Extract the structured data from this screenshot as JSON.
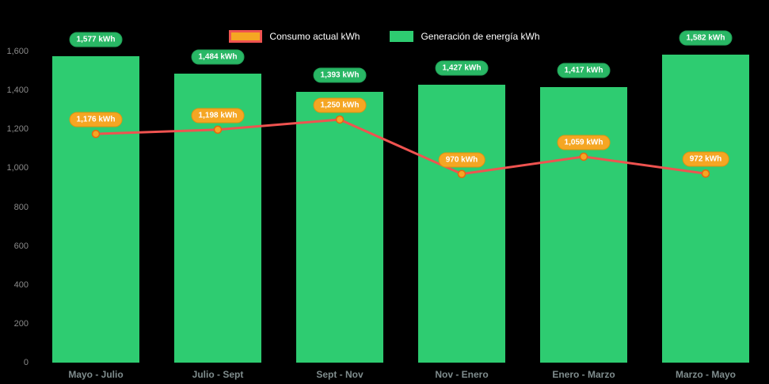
{
  "chart_data": {
    "type": "bar",
    "title": "",
    "categories": [
      "Mayo - Julio",
      "Julio - Sept",
      "Sept - Nov",
      "Nov - Enero",
      "Enero - Marzo",
      "Marzo - Mayo"
    ],
    "series": [
      {
        "name": "Consumo actual kWh",
        "type": "line",
        "values": [
          1176,
          1198,
          1250,
          970,
          1059,
          972
        ],
        "labels": [
          "1,176 kWh",
          "1,198 kWh",
          "1,250 kWh",
          "970 kWh",
          "1,059 kWh",
          "972 kWh"
        ],
        "line_color": "#ef5350",
        "marker_color": "#f5a623",
        "badge_color": "#f5a623"
      },
      {
        "name": "Generación de energía kWh",
        "type": "bar",
        "values": [
          1577,
          1484,
          1393,
          1427,
          1417,
          1582
        ],
        "labels": [
          "1,577 kWh",
          "1,484 kWh",
          "1,393 kWh",
          "1,427 kWh",
          "1,417 kWh",
          "1,582 kWh"
        ],
        "bar_color": "#2ecc71",
        "badge_color": "#29b765"
      }
    ],
    "xlabel": "",
    "ylabel": "",
    "ylim": [
      0,
      1600
    ],
    "yticks": [
      0,
      200,
      400,
      600,
      800,
      1000,
      1200,
      1400,
      1600
    ],
    "ytick_labels": [
      "0",
      "200",
      "400",
      "600",
      "800",
      "1,000",
      "1,200",
      "1,400",
      "1,600"
    ],
    "legend_position": "top",
    "grid": false,
    "background": "#000000"
  }
}
